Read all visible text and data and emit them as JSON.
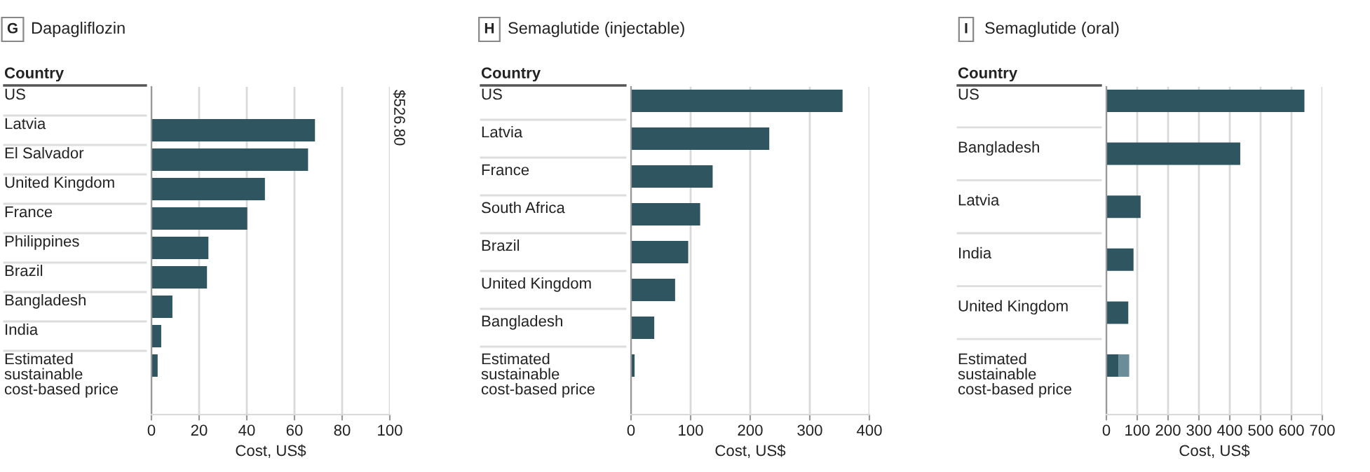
{
  "chart_data": [
    {
      "type": "bar",
      "orientation": "horizontal",
      "title": "Dapagliflozin",
      "annotations": [
        "G"
      ],
      "ylabel": "Country",
      "xlabel": "Cost, US$",
      "categories": [
        "US",
        "Latvia",
        "El Salvador",
        "United Kingdom",
        "France",
        "Philippines",
        "Brazil",
        "Bangladesh",
        "India",
        "Estimated sustainable cost-based price"
      ],
      "series": [
        {
          "color": "#2e5560",
          "values": [
            null,
            68.6,
            65.7,
            47.6,
            40.2,
            23.9,
            23.3,
            8.8,
            4.1,
            2.6
          ],
          "value_labels": [
            "$526.80",
            null,
            null,
            null,
            null,
            null,
            null,
            null,
            null,
            null
          ]
        }
      ],
      "xlim": [
        0,
        100
      ],
      "xticks": [
        0,
        20,
        40,
        60,
        80,
        100
      ],
      "grid": "x",
      "legend": false
    },
    {
      "type": "bar",
      "orientation": "horizontal",
      "title": "Semaglutide (injectable)",
      "annotations": [
        "H"
      ],
      "ylabel": "Country",
      "xlabel": "Cost, US$",
      "categories": [
        "US",
        "Latvia",
        "France",
        "South Africa",
        "Brazil",
        "United Kingdom",
        "Bangladesh",
        "Estimated sustainable cost-based price"
      ],
      "series": [
        {
          "color": "#2e5560",
          "values": [
            355,
            232,
            137,
            116,
            96,
            74,
            39,
            6
          ]
        }
      ],
      "xlim": [
        0,
        400
      ],
      "xticks": [
        0,
        100,
        200,
        300,
        400
      ],
      "grid": "x",
      "legend": false
    },
    {
      "type": "bar",
      "orientation": "horizontal",
      "stacked": true,
      "title": "Semaglutide (oral)",
      "annotations": [
        "I"
      ],
      "ylabel": "Country",
      "xlabel": "Cost, US$",
      "categories": [
        "US",
        "Bangladesh",
        "Latvia",
        "India",
        "United Kingdom",
        "Estimated sustainable cost-based price"
      ],
      "series": [
        {
          "color": "#2e5560",
          "values": [
            642,
            434,
            111,
            88,
            71,
            40
          ]
        },
        {
          "color": "#6a8d99",
          "values": [
            null,
            null,
            null,
            null,
            null,
            34
          ]
        }
      ],
      "xlim": [
        0,
        700
      ],
      "xticks": [
        0,
        100,
        200,
        300,
        400,
        500,
        600,
        700
      ],
      "grid": "x",
      "legend": false
    }
  ]
}
